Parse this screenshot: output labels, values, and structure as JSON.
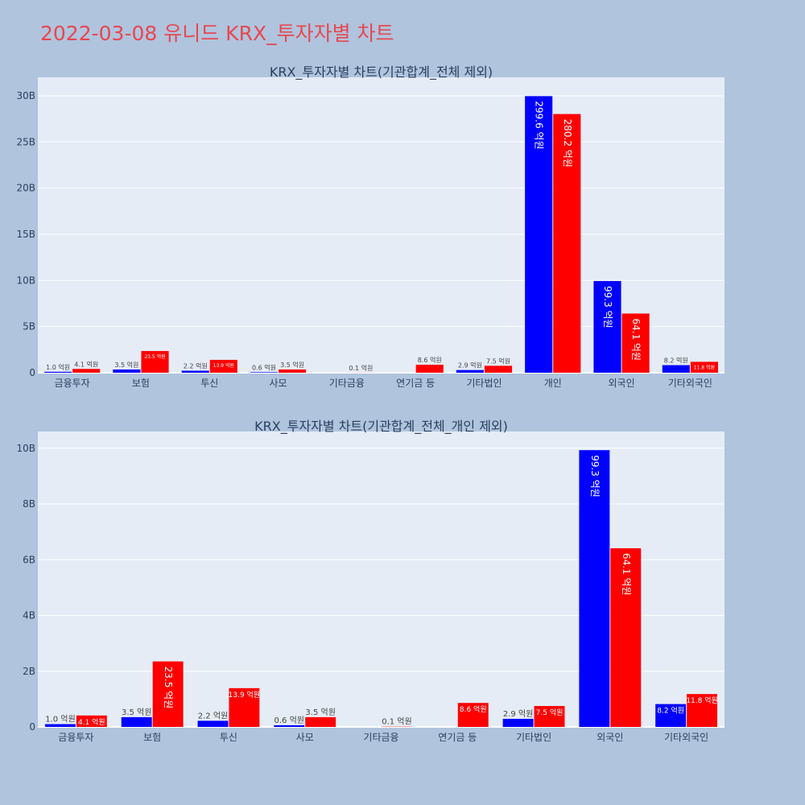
{
  "page": {
    "title": "2022-03-08 유니드 KRX_투자자별 차트"
  },
  "colors": {
    "buy": "#0000ff",
    "sell": "#ff0000",
    "plot_bg": "#e5ecf6",
    "page_bg": "#b0c4de",
    "title": "#e8474f"
  },
  "chart_data": [
    {
      "type": "bar",
      "title": "KRX_투자자별 차트(기관합계_전체 제외)",
      "categories": [
        "금융투자",
        "보험",
        "투신",
        "사모",
        "기타금융",
        "연기금 등",
        "기타법인",
        "개인",
        "외국인",
        "기타외국인"
      ],
      "series": [
        {
          "values": [
            0.1,
            0.35,
            0.22,
            0.06,
            0,
            0,
            0.29,
            29.96,
            9.93,
            0.82
          ],
          "labels": [
            "1.0 억원",
            "3.5 억원",
            "2.2 억원",
            "0.6 억원",
            "",
            "",
            "2.9 억원",
            "299.6 억원",
            "99.3 억원",
            "8.2 억원"
          ]
        },
        {
          "values": [
            0.41,
            2.35,
            1.39,
            0.35,
            0.01,
            0.86,
            0.75,
            28.02,
            6.41,
            1.18
          ],
          "labels": [
            "4.1 억원",
            "23.5 억원",
            "13.9 억원",
            "3.5 억원",
            "0.1 억원",
            "8.6 억원",
            "7.5 억원",
            "280.2 억원",
            "64.1 억원",
            "11.8 억원"
          ]
        }
      ],
      "ylim": [
        0,
        32
      ],
      "yticks": [
        0,
        5,
        10,
        15,
        20,
        25,
        30
      ],
      "ytick_labels": [
        "0",
        "5B",
        "10B",
        "15B",
        "20B",
        "25B",
        "30B"
      ],
      "grid": true
    },
    {
      "type": "bar",
      "title": "KRX_투자자별 차트(기관합계_전체_개인 제외)",
      "categories": [
        "금융투자",
        "보험",
        "투신",
        "사모",
        "기타금융",
        "연기금 등",
        "기타법인",
        "외국인",
        "기타외국인"
      ],
      "series": [
        {
          "values": [
            0.1,
            0.35,
            0.22,
            0.06,
            0,
            0,
            0.29,
            9.93,
            0.82
          ],
          "labels": [
            "1.0 억원",
            "3.5 억원",
            "2.2 억원",
            "0.6 억원",
            "",
            "",
            "2.9 억원",
            "99.3 억원",
            "8.2 억원"
          ]
        },
        {
          "values": [
            0.41,
            2.35,
            1.39,
            0.35,
            0.01,
            0.86,
            0.75,
            6.41,
            1.18
          ],
          "labels": [
            "4.1 억원",
            "23.5 억원",
            "13.9 억원",
            "3.5 억원",
            "0.1 억원",
            "8.6 억원",
            "7.5 억원",
            "64.1 억원",
            "11.8 억원"
          ]
        }
      ],
      "ylim": [
        0,
        10.6
      ],
      "yticks": [
        0,
        2,
        4,
        6,
        8,
        10
      ],
      "ytick_labels": [
        "0",
        "2B",
        "4B",
        "6B",
        "8B",
        "10B"
      ],
      "grid": true
    }
  ]
}
